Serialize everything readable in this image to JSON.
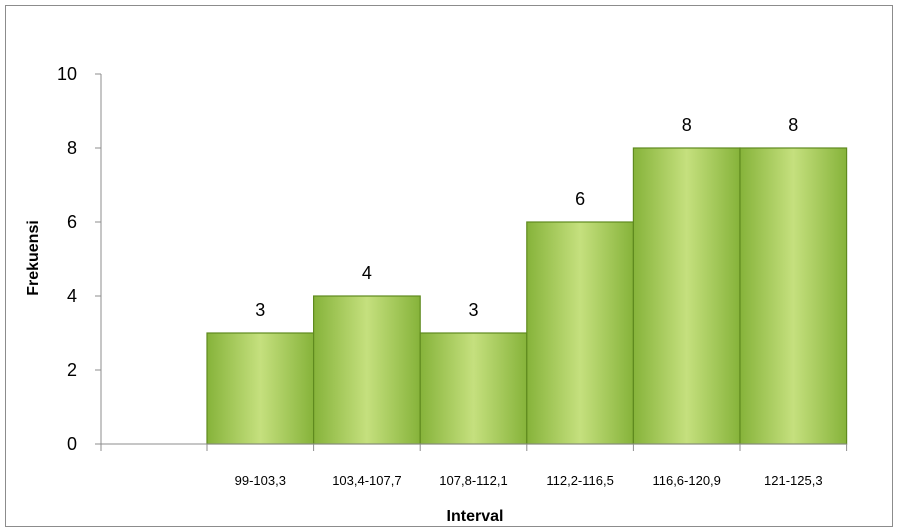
{
  "chart_data": {
    "type": "bar",
    "title": "",
    "xlabel": "Interval",
    "ylabel": "Frekuensi",
    "categories": [
      "99-103,3",
      "103,4-107,7",
      "107,8-112,1",
      "112,2-116,5",
      "116,6-120,9",
      "121-125,3"
    ],
    "values": [
      3,
      4,
      3,
      6,
      8,
      8
    ],
    "ylim": [
      0,
      10
    ],
    "yticks": [
      "0",
      "2",
      "4",
      "6",
      "8",
      "10"
    ],
    "data_labels": [
      "3",
      "4",
      "3",
      "6",
      "8",
      "8"
    ],
    "legend": "none",
    "grid": false,
    "bar_gap": "none (histogram)",
    "colors": {
      "bar_fill_light": "#c5e07e",
      "bar_fill_dark": "#86b33a",
      "bar_edge": "#5f8a1e",
      "axis": "#8c8c8c"
    }
  }
}
